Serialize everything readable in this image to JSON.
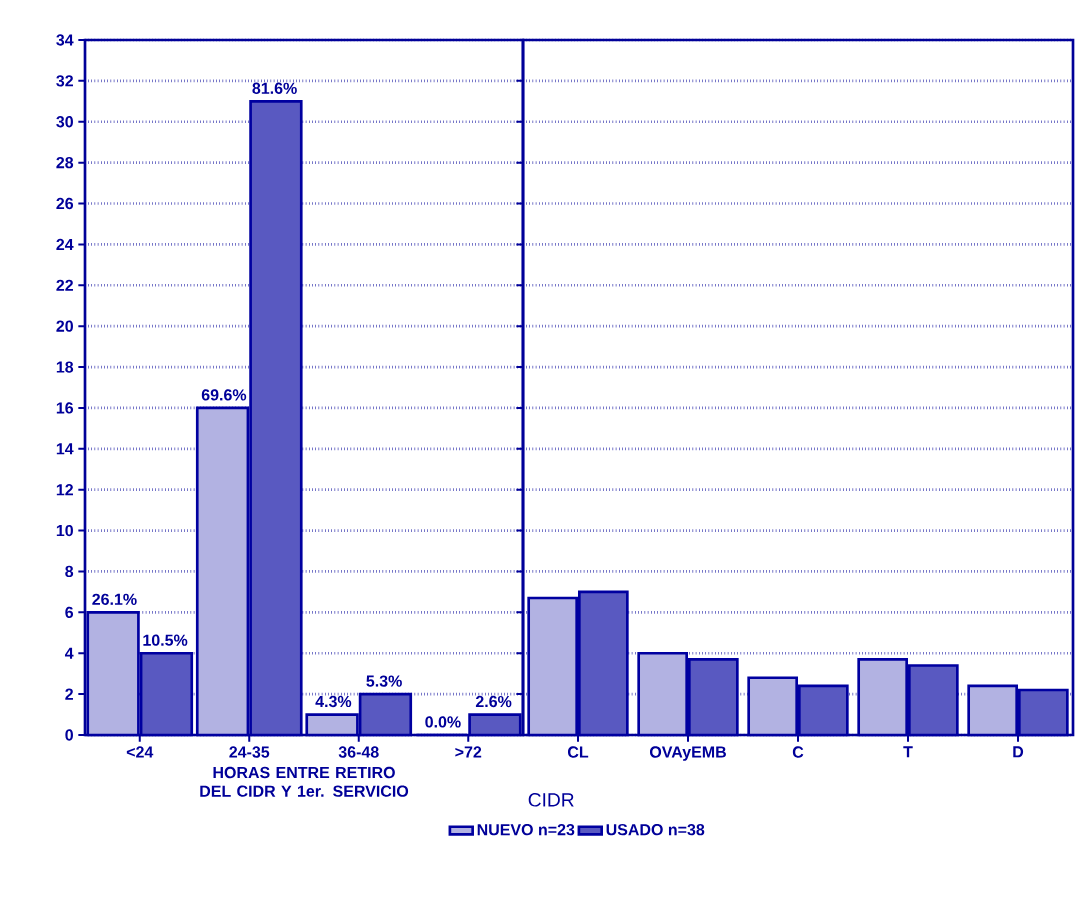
{
  "chart_data": [
    {
      "type": "bar",
      "xlabel": "HORAS ENTRE RETIRO DEL CIDR Y 1er. SERVICIO",
      "categories": [
        "<24",
        "24-35",
        "36-48",
        ">72"
      ],
      "series": [
        {
          "color": "#0000a0",
          "values": [
            6,
            16,
            1,
            0
          ]
        },
        {
          "color": "#0000a0",
          "values": [
            4,
            31,
            2,
            1
          ]
        }
      ],
      "annotations": [
        {
          "text": "26.1%",
          "x": "<24",
          "y": 6
        },
        {
          "text": "10.5%",
          "x": "<24",
          "y": 4
        },
        {
          "text": "69.6%",
          "x": "24-35",
          "y": 16
        },
        {
          "text": "81.6%",
          "x": "24-35",
          "y": 31
        },
        {
          "text": "4.3%",
          "x": "36-48",
          "y": 1
        },
        {
          "text": "5.3%",
          "x": "36-48",
          "y": 2
        },
        {
          "text": "0.0%",
          "x": ">72",
          "y": 0
        },
        {
          "text": "2.6%",
          "x": ">72",
          "y": 1
        }
      ],
      "ylim": [
        0,
        34
      ],
      "yticks": [
        0,
        2,
        4,
        6,
        8,
        10,
        12,
        14,
        16,
        18,
        20,
        22,
        24,
        26,
        28,
        30,
        32,
        34
      ],
      "grid": "y"
    },
    {
      "type": "bar",
      "xlabel": "CIDR",
      "categories": [
        "CL",
        "OVAyEMB",
        "C",
        "T",
        "D"
      ],
      "series": [
        {
          "name": "NUEVO n=23",
          "color": "#0000a0",
          "values": [
            6.7,
            4.0,
            2.8,
            3.7,
            2.4
          ]
        },
        {
          "name": "USADO n=38",
          "color": "#0000a0",
          "values": [
            7.0,
            3.7,
            2.4,
            3.4,
            2.2
          ]
        }
      ],
      "ylim": [
        0,
        34
      ],
      "yticks": [
        0,
        2,
        4,
        6,
        8,
        10,
        12,
        14,
        16,
        18,
        20,
        22,
        24,
        26,
        28,
        30,
        32,
        34
      ],
      "grid": "y",
      "tick_labels": "x",
      "legend": "bottom"
    }
  ]
}
